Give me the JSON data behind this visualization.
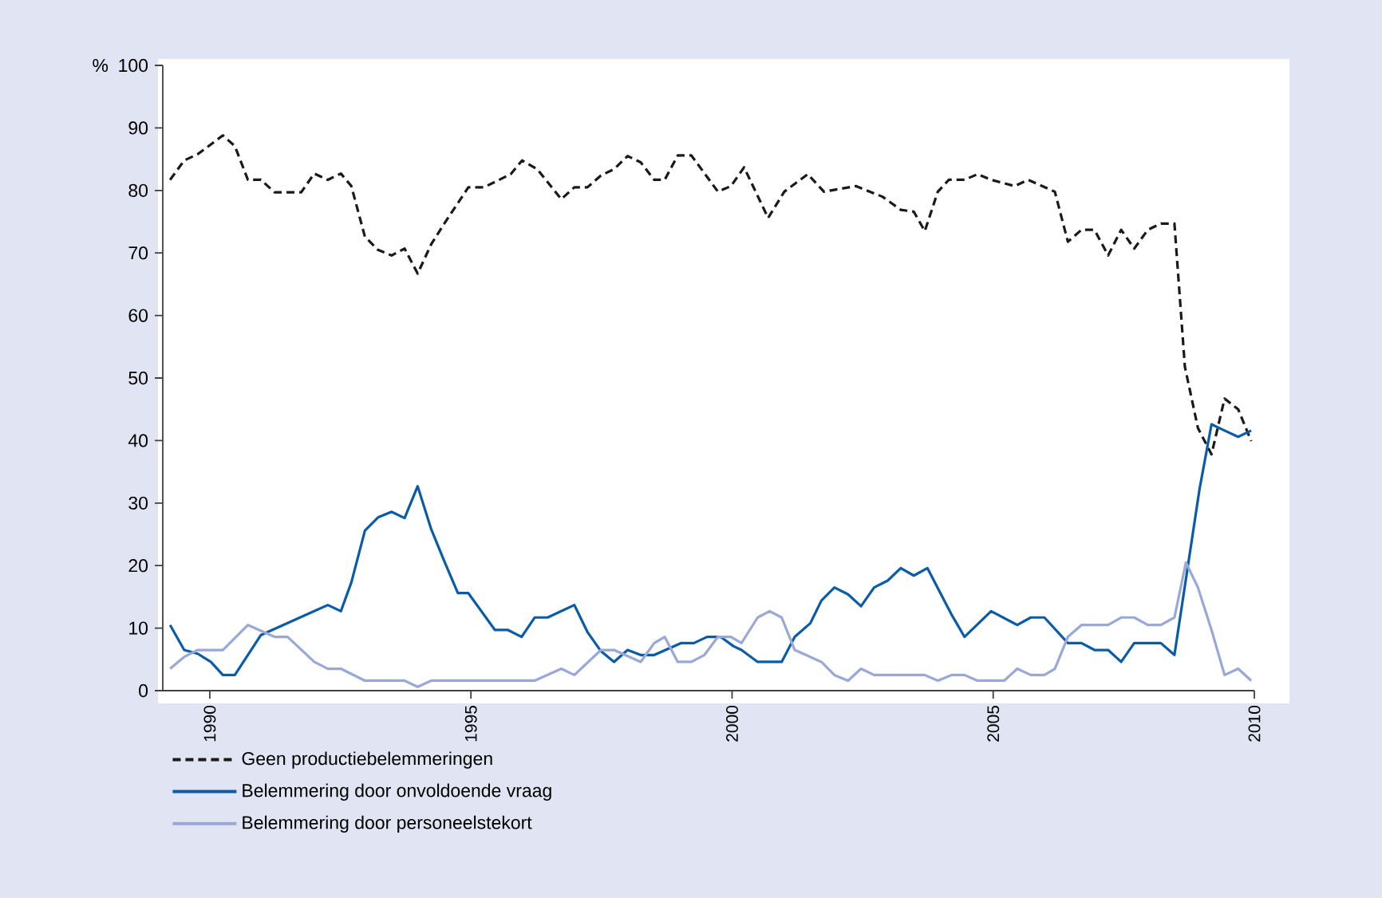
{
  "chart_data": {
    "type": "line",
    "ylabel": "%",
    "xlim": [
      1989.1,
      2010
    ],
    "ylim": [
      0,
      100
    ],
    "xticks": [
      1990,
      1995,
      2000,
      2005,
      2010
    ],
    "yticks": [
      0,
      10,
      20,
      30,
      40,
      50,
      60,
      70,
      80,
      90,
      100
    ],
    "grid": false,
    "legend": "bottom left",
    "marker": "none",
    "series": [
      {
        "name": "Geen productiebelemmeringen",
        "color": "#1a1a1a",
        "line_style": "dashed",
        "x": [
          1989.24,
          1989.51,
          1989.77,
          1990.25,
          1990.48,
          1990.73,
          1990.98,
          1991.24,
          1991.75,
          1992.0,
          1992.26,
          1992.51,
          1992.71,
          1992.97,
          1993.22,
          1993.48,
          1993.73,
          1993.98,
          1994.24,
          1994.49,
          1994.95,
          1995.25,
          1995.76,
          1995.98,
          1996.27,
          1996.73,
          1996.98,
          1997.23,
          1997.49,
          1997.74,
          1998.0,
          1998.25,
          1998.51,
          1998.71,
          1998.96,
          1999.22,
          1999.73,
          1999.98,
          2000.23,
          2000.69,
          2001.0,
          2001.45,
          2001.76,
          2002.37,
          2002.88,
          2003.23,
          2003.48,
          2003.69,
          2003.94,
          2004.15,
          2004.45,
          2004.7,
          2004.96,
          2005.41,
          2005.67,
          2006.18,
          2006.43,
          2006.69,
          2006.94,
          2007.2,
          2007.45,
          2007.7,
          2007.96,
          2008.21,
          2008.47,
          2008.67,
          2008.92,
          2009.18,
          2009.43,
          2009.69,
          2009.94
        ],
        "values": [
          81.7,
          84.8,
          85.8,
          88.8,
          87.1,
          81.7,
          81.7,
          79.7,
          79.7,
          82.7,
          81.7,
          82.7,
          80.7,
          72.6,
          70.5,
          69.6,
          70.7,
          66.7,
          71.4,
          74.7,
          80.5,
          80.5,
          82.6,
          84.8,
          83.4,
          78.6,
          80.5,
          80.5,
          82.4,
          83.4,
          85.5,
          84.5,
          81.7,
          81.7,
          85.6,
          85.6,
          79.8,
          80.7,
          83.7,
          75.6,
          79.8,
          82.6,
          79.8,
          80.7,
          79.0,
          76.9,
          76.6,
          73.5,
          79.8,
          81.7,
          81.7,
          82.6,
          81.7,
          80.7,
          81.7,
          79.8,
          71.8,
          73.7,
          73.7,
          69.6,
          73.7,
          70.7,
          73.7,
          74.7,
          74.7,
          51.8,
          42.0,
          37.8,
          46.7,
          45.0,
          39.9
        ]
      },
      {
        "name": "Belemmering door onvoldoende vraag",
        "color": "#0a5ca8",
        "line_style": "solid",
        "x": [
          1989.24,
          1989.51,
          1989.77,
          1990.02,
          1990.25,
          1990.48,
          1990.98,
          1992.26,
          1992.51,
          1992.71,
          1992.97,
          1993.22,
          1993.48,
          1993.73,
          1993.98,
          1994.24,
          1994.49,
          1994.75,
          1994.95,
          1995.46,
          1995.71,
          1995.97,
          1996.22,
          1996.47,
          1996.98,
          1997.23,
          1997.49,
          1997.74,
          1998.0,
          1998.25,
          1998.51,
          1999.02,
          1999.27,
          1999.52,
          1999.78,
          2000.03,
          2000.18,
          2000.49,
          2000.95,
          2001.2,
          2001.5,
          2001.71,
          2001.96,
          2002.22,
          2002.47,
          2002.72,
          2002.98,
          2003.23,
          2003.48,
          2003.74,
          2004.2,
          2004.45,
          2004.96,
          2005.46,
          2005.72,
          2005.98,
          2006.43,
          2006.69,
          2006.94,
          2007.2,
          2007.45,
          2007.7,
          2008.21,
          2008.47,
          2008.95,
          2009.18,
          2009.43,
          2009.69,
          2009.94
        ],
        "values": [
          10.5,
          6.5,
          5.9,
          4.6,
          2.5,
          2.5,
          8.9,
          13.7,
          12.7,
          17.3,
          25.6,
          27.7,
          28.6,
          27.6,
          32.7,
          25.8,
          20.7,
          15.6,
          15.6,
          9.7,
          9.7,
          8.6,
          11.7,
          11.7,
          13.7,
          9.4,
          6.3,
          4.6,
          6.5,
          5.7,
          5.7,
          7.6,
          7.6,
          8.6,
          8.6,
          7.1,
          6.5,
          4.6,
          4.6,
          8.6,
          10.8,
          14.4,
          16.5,
          15.4,
          13.5,
          16.5,
          17.6,
          19.6,
          18.4,
          19.6,
          12.2,
          8.6,
          12.7,
          10.5,
          11.7,
          11.7,
          7.6,
          7.6,
          6.5,
          6.5,
          4.6,
          7.6,
          7.6,
          5.7,
          32.2,
          42.6,
          41.6,
          40.6,
          41.6
        ]
      },
      {
        "name": "Belemmering door personeelstekort",
        "color": "#9aa8d8",
        "line_style": "solid",
        "x": [
          1989.24,
          1989.51,
          1989.77,
          1990.25,
          1990.73,
          1991.24,
          1991.49,
          1992.0,
          1992.26,
          1992.51,
          1992.97,
          1993.73,
          1993.98,
          1994.24,
          1996.22,
          1996.73,
          1996.98,
          1997.49,
          1997.74,
          1998.25,
          1998.51,
          1998.71,
          1998.96,
          1999.22,
          1999.47,
          1999.73,
          1999.98,
          2000.18,
          2000.49,
          2000.72,
          2000.95,
          2001.2,
          2001.71,
          2001.96,
          2002.22,
          2002.47,
          2002.72,
          2003.69,
          2003.94,
          2004.2,
          2004.45,
          2004.7,
          2005.21,
          2005.46,
          2005.72,
          2005.98,
          2006.18,
          2006.43,
          2006.69,
          2007.2,
          2007.45,
          2007.7,
          2007.96,
          2008.21,
          2008.47,
          2008.69,
          2008.92,
          2009.18,
          2009.43,
          2009.69,
          2009.94
        ],
        "values": [
          3.5,
          5.4,
          6.5,
          6.5,
          10.5,
          8.6,
          8.6,
          4.6,
          3.5,
          3.5,
          1.6,
          1.6,
          0.6,
          1.6,
          1.6,
          3.5,
          2.5,
          6.5,
          6.5,
          4.6,
          7.6,
          8.6,
          4.6,
          4.6,
          5.7,
          8.6,
          8.6,
          7.6,
          11.7,
          12.7,
          11.7,
          6.5,
          4.6,
          2.5,
          1.6,
          3.5,
          2.5,
          2.5,
          1.6,
          2.5,
          2.5,
          1.6,
          1.6,
          3.5,
          2.5,
          2.5,
          3.5,
          8.6,
          10.5,
          10.5,
          11.7,
          11.7,
          10.5,
          10.5,
          11.7,
          20.5,
          16.5,
          9.7,
          2.5,
          3.5,
          1.6
        ]
      }
    ]
  }
}
